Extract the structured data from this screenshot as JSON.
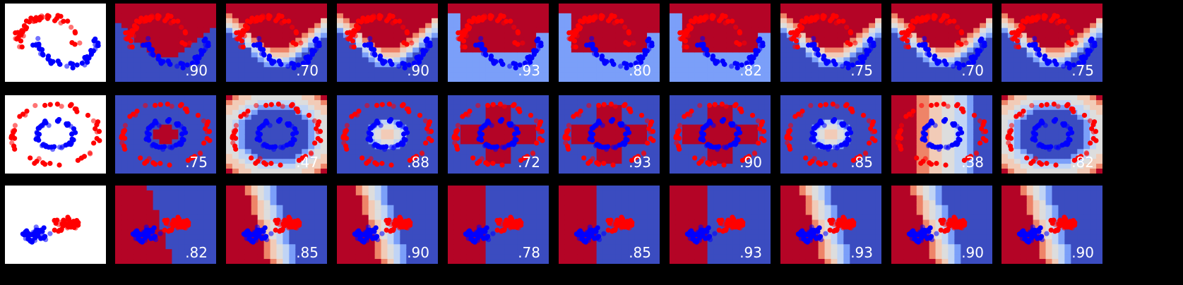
{
  "chart_data": {
    "type": "scatter",
    "description_rows": [
      "moons",
      "circles",
      "linearly separable"
    ],
    "classifier_columns": 9,
    "class_colors": {
      "class_0": "#ff0000",
      "class_1": "#0000ff"
    },
    "background_colormap": [
      "#3b4cc0",
      "#7b9ff9",
      "#c0d4f5",
      "#dddddd",
      "#f2cbb7",
      "#ee8468",
      "#b40426"
    ],
    "scores": [
      [
        ".90",
        ".70",
        ".90",
        ".93",
        ".80",
        ".82",
        ".75",
        ".70",
        ".75"
      ],
      [
        ".75",
        ".47",
        ".88",
        ".72",
        ".93",
        ".90",
        ".85",
        ".38",
        ".82"
      ],
      [
        ".82",
        ".85",
        ".90",
        ".78",
        ".85",
        ".93",
        ".93",
        ".90",
        ".90"
      ]
    ],
    "xlim": [
      0,
      1
    ],
    "ylim": [
      0,
      1
    ],
    "grid": false
  }
}
